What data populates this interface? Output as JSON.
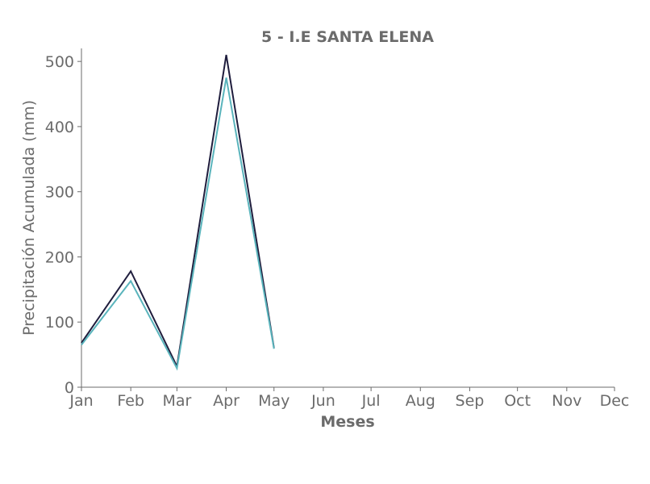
{
  "chart_data": {
    "type": "line",
    "title": "5 - I.E SANTA ELENA",
    "xlabel": "Meses",
    "ylabel": "Precipitación Acumulada (mm)",
    "categories": [
      "Jan",
      "Feb",
      "Mar",
      "Apr",
      "May",
      "Jun",
      "Jul",
      "Aug",
      "Sep",
      "Oct",
      "Nov",
      "Dec"
    ],
    "x_dates": [
      "2024-01-01",
      "2024-02-01",
      "2024-03-01",
      "2024-04-01",
      "2024-05-01",
      "2024-06-01",
      "2024-07-01",
      "2024-08-01",
      "2024-09-01",
      "2024-10-01",
      "2024-11-01",
      "2024-12-01"
    ],
    "ylim": [
      0,
      520
    ],
    "yticks": [
      0,
      100,
      200,
      300,
      400,
      500
    ],
    "grid": false,
    "series": [
      {
        "color": "#1f1d3d",
        "x": [
          "2024-01-01",
          "2024-02-01",
          "2024-03-01",
          "2024-04-01",
          "2024-05-01"
        ],
        "values": [
          68,
          178,
          32,
          510,
          60
        ]
      },
      {
        "color": "#5ab4bc",
        "x": [
          "2024-01-01",
          "2024-02-01",
          "2024-03-01",
          "2024-04-01",
          "2024-05-01"
        ],
        "values": [
          65,
          163,
          29,
          475,
          59
        ]
      }
    ]
  }
}
